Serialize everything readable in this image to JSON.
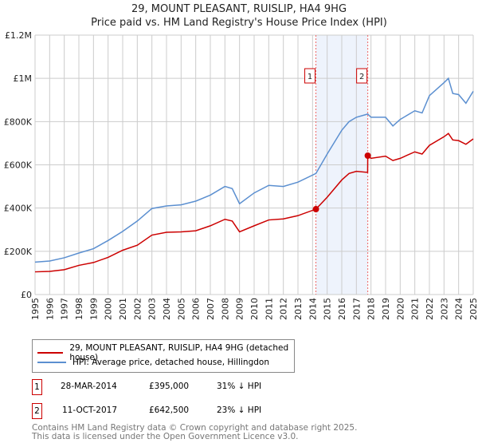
{
  "title": "29, MOUNT PLEASANT, RUISLIP, HA4 9HG",
  "subtitle": "Price paid vs. HM Land Registry's House Price Index (HPI)",
  "chart_data": {
    "type": "line",
    "xlim": [
      1995,
      2025
    ],
    "ylim": [
      0,
      1200000
    ],
    "yticks": [
      {
        "v": 0,
        "l": "£0"
      },
      {
        "v": 200000,
        "l": "£200K"
      },
      {
        "v": 400000,
        "l": "£400K"
      },
      {
        "v": 600000,
        "l": "£600K"
      },
      {
        "v": 800000,
        "l": "£800K"
      },
      {
        "v": 1000000,
        "l": "£1M"
      },
      {
        "v": 1200000,
        "l": "£1.2M"
      }
    ],
    "xticks": [
      1995,
      1996,
      1997,
      1998,
      1999,
      2000,
      2001,
      2002,
      2003,
      2004,
      2005,
      2006,
      2007,
      2008,
      2009,
      2010,
      2011,
      2012,
      2013,
      2014,
      2015,
      2016,
      2017,
      2018,
      2019,
      2020,
      2021,
      2022,
      2023,
      2024,
      2025
    ],
    "series": [
      {
        "name": "29, MOUNT PLEASANT, RUISLIP, HA4 9HG (detached house)",
        "color": "#cc0000",
        "x": [
          1995,
          1996,
          1997,
          1998,
          1999,
          2000,
          2001,
          2002,
          2003,
          2004,
          2005,
          2006,
          2007,
          2008,
          2008.5,
          2009,
          2010,
          2011,
          2012,
          2013,
          2014.23,
          2015,
          2016,
          2016.5,
          2017,
          2017.77,
          2017.78,
          2018,
          2019,
          2019.5,
          2020,
          2021,
          2021.5,
          2022,
          2023,
          2023.3,
          2023.6,
          2024,
          2024.5,
          2025
        ],
        "y": [
          105000,
          107000,
          115000,
          135000,
          148000,
          172000,
          205000,
          228000,
          275000,
          288000,
          290000,
          295000,
          318000,
          348000,
          340000,
          290000,
          318000,
          345000,
          350000,
          365000,
          395000,
          450000,
          530000,
          560000,
          570000,
          565000,
          642500,
          630000,
          640000,
          620000,
          630000,
          660000,
          650000,
          690000,
          730000,
          745000,
          715000,
          712000,
          695000,
          720000
        ]
      },
      {
        "name": "HPI: Average price, detached house, Hillingdon",
        "color": "#5b8fd0",
        "x": [
          1995,
          1996,
          1997,
          1998,
          1999,
          2000,
          2001,
          2002,
          2003,
          2004,
          2005,
          2006,
          2007,
          2008,
          2008.5,
          2009,
          2010,
          2011,
          2012,
          2013,
          2014.23,
          2015,
          2016,
          2016.5,
          2017,
          2017.78,
          2018,
          2019,
          2019.5,
          2020,
          2021,
          2021.5,
          2022,
          2023,
          2023.3,
          2023.6,
          2024,
          2024.5,
          2025
        ],
        "y": [
          150000,
          155000,
          170000,
          192000,
          212000,
          250000,
          292000,
          340000,
          398000,
          410000,
          415000,
          432000,
          460000,
          500000,
          490000,
          420000,
          470000,
          505000,
          500000,
          520000,
          560000,
          650000,
          760000,
          800000,
          820000,
          835000,
          820000,
          820000,
          780000,
          810000,
          850000,
          840000,
          920000,
          980000,
          1000000,
          930000,
          925000,
          885000,
          940000
        ]
      }
    ],
    "markers": [
      {
        "label": "1",
        "x": 2014.23,
        "y": 395000
      },
      {
        "label": "2",
        "x": 2017.78,
        "y": 642500
      }
    ]
  },
  "legend": {
    "red": "29, MOUNT PLEASANT, RUISLIP, HA4 9HG (detached house)",
    "blue": "HPI: Average price, detached house, Hillingdon"
  },
  "transactions": [
    {
      "num": "1",
      "date": "28-MAR-2014",
      "price": "£395,000",
      "delta": "31% ↓ HPI"
    },
    {
      "num": "2",
      "date": "11-OCT-2017",
      "price": "£642,500",
      "delta": "23% ↓ HPI"
    }
  ],
  "footer": [
    "Contains HM Land Registry data © Crown copyright and database right 2025.",
    "This data is licensed under the Open Government Licence v3.0."
  ]
}
